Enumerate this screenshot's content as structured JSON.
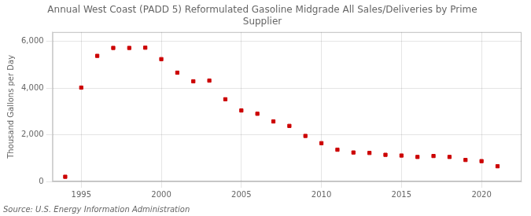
{
  "chart_data": {
    "type": "scatter",
    "title": "Annual West Coast (PADD 5) Reformulated Gasoline Midgrade All Sales/Deliveries by Prime\nSupplier",
    "ylabel": "Thousand Gallons per Day",
    "source": "Source: U.S. Energy Information Administration",
    "color": "#cc0000",
    "marker": "square",
    "x": [
      1994,
      1995,
      1996,
      1997,
      1998,
      1999,
      2000,
      2001,
      2002,
      2003,
      2004,
      2005,
      2006,
      2007,
      2008,
      2009,
      2010,
      2011,
      2012,
      2013,
      2014,
      2015,
      2016,
      2017,
      2018,
      2019,
      2020,
      2021
    ],
    "values": [
      200,
      4020,
      5380,
      5720,
      5720,
      5730,
      5240,
      4660,
      4290,
      4320,
      3520,
      3040,
      2900,
      2570,
      2380,
      1950,
      1640,
      1360,
      1240,
      1220,
      1140,
      1110,
      1050,
      1090,
      1050,
      920,
      870,
      650
    ],
    "xlim": [
      1993.2,
      2022.5
    ],
    "xticks": [
      {
        "value": 1995,
        "label": "1995"
      },
      {
        "value": 2000,
        "label": "2000"
      },
      {
        "value": 2005,
        "label": "2005"
      },
      {
        "value": 2010,
        "label": "2010"
      },
      {
        "value": 2015,
        "label": "2015"
      },
      {
        "value": 2020,
        "label": "2020"
      }
    ],
    "ylim": [
      0,
      6400
    ],
    "yticks": [
      0,
      {
        "value": 2000,
        "label": "2,000"
      },
      {
        "value": 4000,
        "label": "4,000"
      },
      {
        "value": 6000,
        "label": "6,000"
      }
    ],
    "grid": true
  }
}
